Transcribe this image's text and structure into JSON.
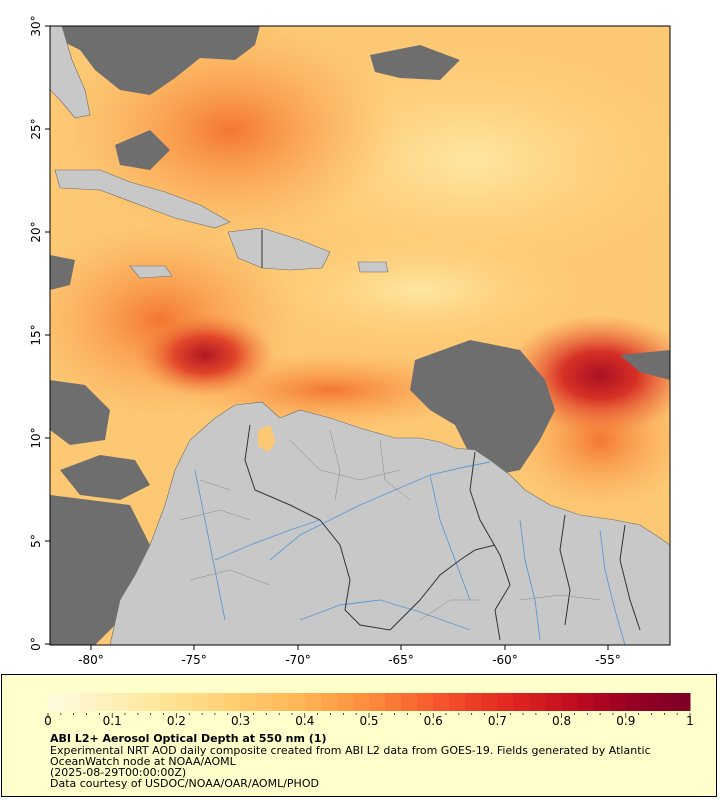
{
  "map": {
    "lat_labels": [
      "30°",
      "25°",
      "20°",
      "15°",
      "10°",
      "5°",
      "0°"
    ],
    "lon_labels": [
      "-80°",
      "-75°",
      "-70°",
      "-65°",
      "-60°",
      "-55°"
    ],
    "lat_range": [
      0,
      30
    ],
    "lon_range": [
      -82,
      -52
    ],
    "colors": {
      "nodata": "#6e6e6e",
      "land": "#c8c8c8",
      "border": "#333333",
      "river": "#5a9ad6"
    }
  },
  "legend": {
    "ticks": [
      "0",
      "0.1",
      "0.2",
      "0.3",
      "0.4",
      "0.5",
      "0.6",
      "0.7",
      "0.8",
      "0.9",
      "1"
    ],
    "range": [
      0,
      1
    ],
    "colors": [
      "#fffbe0",
      "#fff0b8",
      "#ffe190",
      "#ffcc6e",
      "#ffb455",
      "#fd8c3c",
      "#f75a2e",
      "#e62d22",
      "#c8101e",
      "#9a0022",
      "#7a0026"
    ]
  },
  "caption": {
    "title": "ABI L2+ Aerosol Optical Depth at 550 nm (1)",
    "description_line1": "Experimental NRT AOD daily composite created from ABI L2 data from GOES-19. Fields generated by Atlantic",
    "description_line2": "OceanWatch node at NOAA/AOML",
    "date": "(2025-08-29T00:00:00Z)",
    "credit": "Data courtesy of USDOC/NOAA/OAR/AOML/PHOD"
  }
}
